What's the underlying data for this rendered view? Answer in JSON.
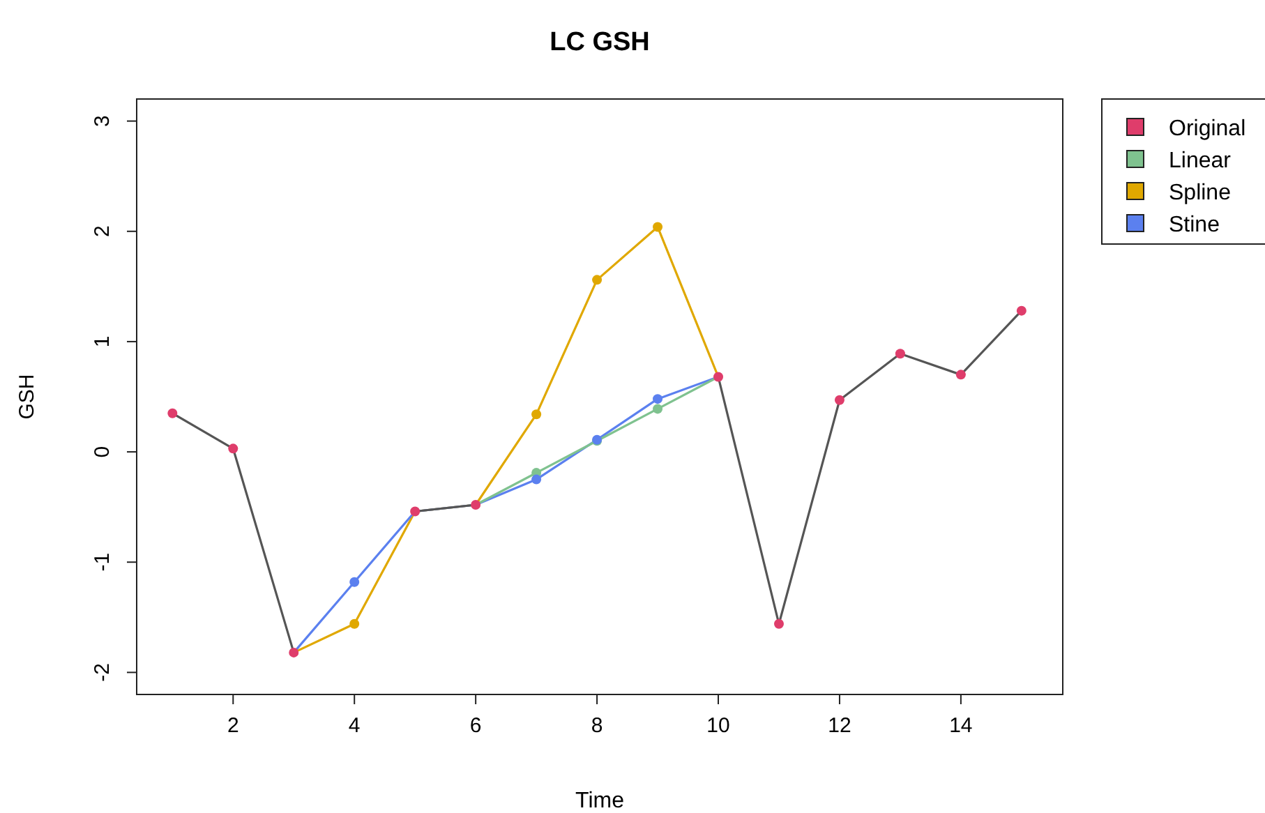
{
  "chart_data": {
    "type": "line",
    "title": "LC GSH",
    "xlabel": "Time",
    "ylabel": "GSH",
    "x": [
      1,
      2,
      3,
      4,
      5,
      6,
      7,
      8,
      9,
      10,
      11,
      12,
      13,
      14,
      15
    ],
    "xlim": [
      0.41,
      15.68
    ],
    "ylim": [
      -2.2,
      3.2
    ],
    "xticks": [
      2,
      4,
      6,
      8,
      10,
      12,
      14
    ],
    "yticks": [
      -2,
      -1,
      0,
      1,
      2,
      3
    ],
    "legend": "right",
    "marker": "circle",
    "line_style": "solid",
    "grid": false,
    "series": [
      {
        "name": "Original",
        "color": "#df3d6b",
        "values": [
          0.35,
          0.03,
          -1.82,
          null,
          -0.54,
          -0.48,
          null,
          null,
          null,
          0.68,
          -1.56,
          0.47,
          0.89,
          0.7,
          1.28
        ]
      },
      {
        "name": "Linear",
        "color": "#7fc28f",
        "values": [
          null,
          null,
          null,
          null,
          null,
          -0.48,
          -0.19,
          0.1,
          0.39,
          0.68,
          null,
          null,
          null,
          null,
          null
        ]
      },
      {
        "name": "Spline",
        "color": "#e0a800",
        "values": [
          null,
          null,
          -1.82,
          -1.56,
          -0.54,
          -0.48,
          0.34,
          1.56,
          2.04,
          0.68,
          null,
          null,
          null,
          null,
          null
        ]
      },
      {
        "name": "Stine",
        "color": "#5b80ef",
        "values": [
          null,
          null,
          -1.82,
          -1.18,
          -0.54,
          -0.48,
          -0.25,
          0.11,
          0.48,
          0.68,
          null,
          null,
          null,
          null,
          null
        ]
      }
    ]
  }
}
